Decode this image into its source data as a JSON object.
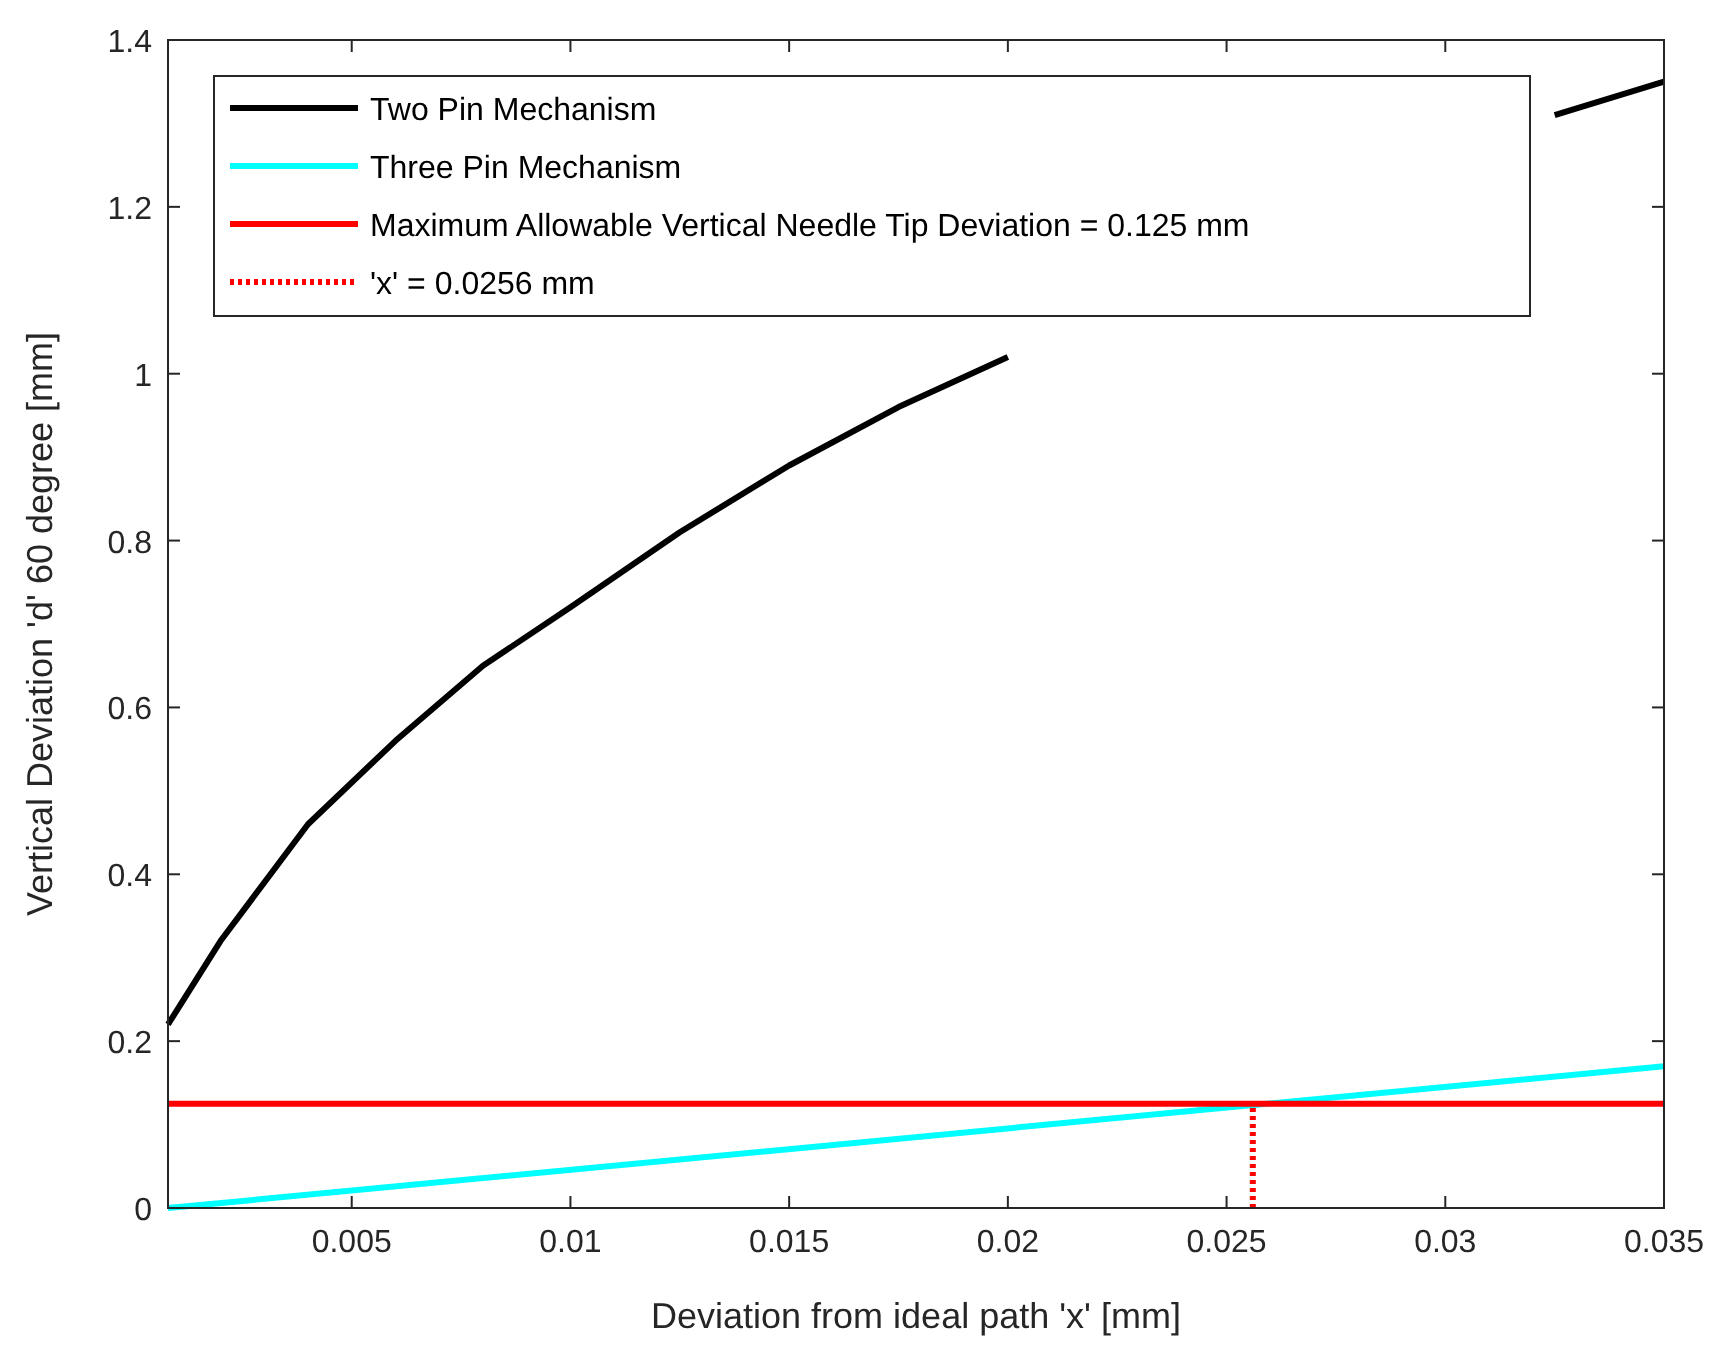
{
  "chart_data": {
    "type": "line",
    "xlabel": "Deviation from ideal path 'x' [mm]",
    "ylabel": "Vertical Deviation 'd' 60 degree [mm]",
    "xlim": [
      0.0008,
      0.035
    ],
    "xticks": [
      0.005,
      0.01,
      0.015,
      0.02,
      0.025,
      0.03,
      0.035
    ],
    "ylim": [
      0,
      1.4
    ],
    "yticks": [
      0,
      0.2,
      0.4,
      0.6,
      0.8,
      1,
      1.2,
      1.4
    ],
    "grid": false,
    "legend": "top left",
    "series": [
      {
        "name": "Two Pin Mechanism",
        "color": "#000000",
        "x": [
          0.0008,
          0.002,
          0.004,
          0.006,
          0.008,
          0.01,
          0.0125,
          0.015,
          0.0175,
          0.02,
          0.0225,
          0.025,
          0.0275,
          0.03,
          0.0325,
          0.035
        ],
        "values": [
          0.22,
          0.32,
          0.46,
          0.56,
          0.65,
          0.72,
          0.81,
          0.89,
          0.96,
          1.02,
          null,
          null,
          null,
          null,
          1.31,
          1.35
        ]
      },
      {
        "name": "Three Pin Mechanism",
        "color": "#00ffff",
        "x": [
          0.0008,
          0.035
        ],
        "values": [
          0,
          0.17
        ]
      },
      {
        "name": "Maximum Allowable Vertical Needle Tip Deviation = 0.125 mm",
        "color": "#ff0000",
        "x": [
          0.0008,
          0.035
        ],
        "values": [
          0.125,
          0.125
        ]
      },
      {
        "name": "'x' = 0.0256 mm",
        "color": "#ff0000",
        "line_style": "dotted",
        "x": [
          0.0256,
          0.0256
        ],
        "values": [
          0,
          0.125
        ]
      }
    ]
  }
}
